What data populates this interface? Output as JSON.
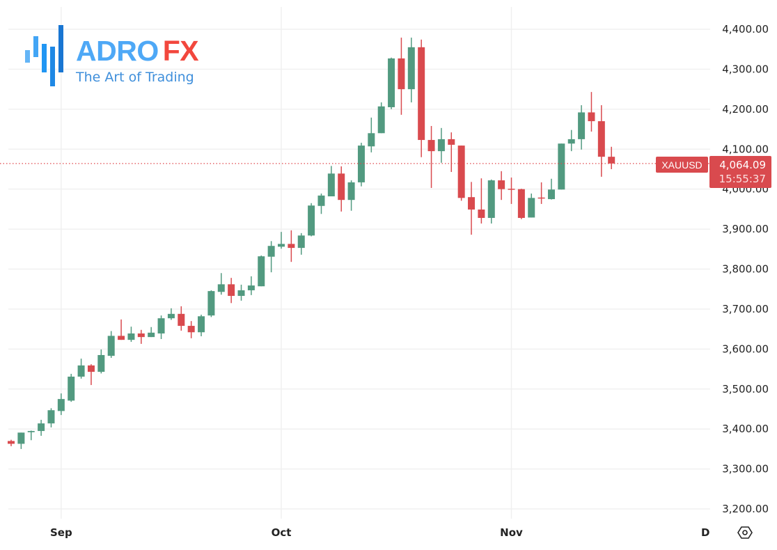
{
  "logo": {
    "brand_primary": "ADRO",
    "brand_accent": "FX",
    "tagline": "The Art of Trading",
    "colors": {
      "primary": "#4ea8f6",
      "accent": "#f2473d",
      "tagline": "#3f8fdb"
    }
  },
  "chart_data": {
    "type": "candlestick",
    "symbol": "XAUUSD",
    "last_price": "4,064.09",
    "countdown": "15:55:37",
    "ylim": [
      3180,
      4420
    ],
    "y_ticks": [
      4400,
      4300,
      4200,
      4100,
      4000,
      3900,
      3800,
      3700,
      3600,
      3500,
      3400,
      3300,
      3200
    ],
    "y_tick_labels": [
      "4,400.00",
      "4,300.00",
      "4,200.00",
      "4,100.00",
      "4,000.00",
      "3,900.00",
      "3,800.00",
      "3,700.00",
      "3,600.00",
      "3,500.00",
      "3,400.00",
      "3,300.00",
      "3,200.00"
    ],
    "x_ticks": [
      {
        "label": "Sep",
        "candle": 5
      },
      {
        "label": "Oct",
        "candle": 27
      },
      {
        "label": "Nov",
        "candle": 50
      },
      {
        "label": "D",
        "candle": 69.4
      }
    ],
    "grid": true,
    "colors": {
      "up": "#529a80",
      "down": "#d94a4e",
      "price_line": "#e0474c",
      "grid": "#f0f0f0"
    },
    "candles": [
      [
        3370,
        3373,
        3357,
        3363
      ],
      [
        3363,
        3391,
        3350,
        3391
      ],
      [
        3392,
        3396,
        3372,
        3395
      ],
      [
        3395,
        3423,
        3383,
        3414
      ],
      [
        3414,
        3452,
        3404,
        3447
      ],
      [
        3445,
        3489,
        3435,
        3475
      ],
      [
        3471,
        3538,
        3468,
        3531
      ],
      [
        3531,
        3576,
        3526,
        3559
      ],
      [
        3559,
        3562,
        3510,
        3543
      ],
      [
        3543,
        3599,
        3539,
        3585
      ],
      [
        3583,
        3645,
        3578,
        3633
      ],
      [
        3633,
        3674,
        3623,
        3623
      ],
      [
        3623,
        3656,
        3618,
        3639
      ],
      [
        3639,
        3648,
        3613,
        3630
      ],
      [
        3630,
        3655,
        3630,
        3641
      ],
      [
        3639,
        3684,
        3625,
        3677
      ],
      [
        3677,
        3702,
        3673,
        3688
      ],
      [
        3688,
        3707,
        3646,
        3658
      ],
      [
        3658,
        3670,
        3627,
        3642
      ],
      [
        3642,
        3686,
        3632,
        3682
      ],
      [
        3684,
        3747,
        3680,
        3745
      ],
      [
        3743,
        3790,
        3736,
        3762
      ],
      [
        3762,
        3778,
        3715,
        3733
      ],
      [
        3733,
        3761,
        3721,
        3747
      ],
      [
        3747,
        3782,
        3735,
        3759
      ],
      [
        3757,
        3834,
        3757,
        3832
      ],
      [
        3831,
        3870,
        3792,
        3858
      ],
      [
        3856,
        3893,
        3851,
        3863
      ],
      [
        3863,
        3897,
        3818,
        3853
      ],
      [
        3853,
        3890,
        3836,
        3884
      ],
      [
        3884,
        3965,
        3882,
        3959
      ],
      [
        3958,
        3989,
        3938,
        3984
      ],
      [
        3982,
        4058,
        3982,
        4039
      ],
      [
        4039,
        4057,
        3944,
        3973
      ],
      [
        3973,
        4022,
        3946,
        4017
      ],
      [
        4017,
        4116,
        4007,
        4109
      ],
      [
        4107,
        4179,
        4092,
        4140
      ],
      [
        4140,
        4217,
        4140,
        4207
      ],
      [
        4205,
        4329,
        4200,
        4327
      ],
      [
        4327,
        4379,
        4186,
        4250
      ],
      [
        4250,
        4379,
        4217,
        4355
      ],
      [
        4355,
        4374,
        4080,
        4123
      ],
      [
        4123,
        4158,
        4003,
        4095
      ],
      [
        4095,
        4153,
        4066,
        4125
      ],
      [
        4125,
        4142,
        4043,
        4111
      ],
      [
        4109,
        4109,
        3971,
        3978
      ],
      [
        3980,
        4018,
        3886,
        3949
      ],
      [
        3949,
        4027,
        3914,
        3928
      ],
      [
        3928,
        4024,
        3914,
        4022
      ],
      [
        4022,
        4045,
        3973,
        4000
      ],
      [
        4001,
        4029,
        3963,
        3999
      ],
      [
        4000,
        4001,
        3925,
        3928
      ],
      [
        3929,
        3989,
        3929,
        3978
      ],
      [
        3979,
        4017,
        3963,
        3977
      ],
      [
        3975,
        4026,
        3974,
        3999
      ],
      [
        3999,
        4114,
        3999,
        4114
      ],
      [
        4114,
        4148,
        4095,
        4125
      ],
      [
        4125,
        4210,
        4099,
        4192
      ],
      [
        4192,
        4243,
        4144,
        4170
      ],
      [
        4170,
        4210,
        4031,
        4081
      ],
      [
        4081,
        4106,
        4050,
        4064.09
      ]
    ]
  }
}
